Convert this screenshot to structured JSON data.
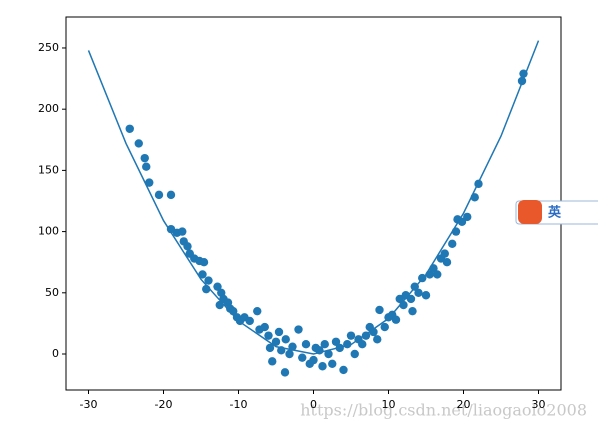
{
  "chart_data": {
    "type": "scatter",
    "xlim": [
      -33,
      33
    ],
    "ylim": [
      -29.4,
      275.3
    ],
    "xticks": [
      -30,
      -20,
      -10,
      0,
      10,
      20,
      30
    ],
    "yticks": [
      0,
      50,
      100,
      150,
      200,
      250
    ],
    "series": [
      {
        "type": "line",
        "color": "#1f77b4",
        "x": [
          -30,
          -25,
          -20,
          -15,
          -10,
          -5,
          0,
          5,
          10,
          15,
          20,
          25,
          30
        ],
        "values": [
          248,
          172,
          109,
          61,
          27,
          6,
          0,
          7.7,
          29,
          65,
          115,
          178,
          256
        ]
      },
      {
        "type": "scatter",
        "color": "#1f77b4",
        "x": [
          -24.5,
          -23.3,
          -22.5,
          -22.3,
          -21.9,
          -20.6,
          -19,
          -19,
          -18.2,
          -17.5,
          -17.3,
          -16.8,
          -16.5,
          -15.9,
          -15.2,
          -14.6,
          -14.8,
          -14,
          -14.3,
          -12.8,
          -12.3,
          -12,
          -12.5,
          -11.4,
          -11.1,
          -10.7,
          -10.2,
          -9.8,
          -9.2,
          -8.5,
          -7.5,
          -7.2,
          -6.5,
          -6,
          -5.8,
          -5.5,
          -5,
          -4.6,
          -4.3,
          -3.8,
          -3.7,
          -3.2,
          -2.8,
          -2,
          -1.5,
          -1,
          -0.5,
          0,
          0.3,
          0.8,
          1.2,
          1.5,
          2,
          2.5,
          3,
          3.5,
          4,
          4.5,
          5,
          5.5,
          6,
          6.5,
          7,
          7.5,
          8,
          8.5,
          8.8,
          9.5,
          10,
          10.5,
          11,
          11.5,
          12,
          12.3,
          13,
          13.5,
          13.2,
          14,
          14.5,
          15,
          15.5,
          16,
          16.5,
          17,
          17.5,
          17.8,
          18.5,
          19,
          19.2,
          19.8,
          20.5,
          21.5,
          22,
          27.8,
          28
        ],
        "values": [
          184,
          172,
          160,
          153,
          140,
          130,
          130,
          102,
          99,
          100,
          92,
          88,
          82,
          78,
          76,
          75,
          65,
          60,
          53,
          55,
          50,
          45,
          40,
          42,
          37,
          35,
          30,
          27,
          30,
          27,
          35,
          20,
          22,
          15,
          5,
          -6,
          10,
          18,
          3,
          -15,
          12,
          0,
          6,
          20,
          -3,
          8,
          -8,
          -5,
          5,
          3,
          -10,
          8,
          0,
          -8,
          10,
          5,
          -13,
          8,
          15,
          0,
          12,
          8,
          15,
          22,
          18,
          12,
          36,
          22,
          30,
          32,
          28,
          45,
          40,
          48,
          45,
          55,
          35,
          50,
          62,
          48,
          65,
          70,
          65,
          78,
          82,
          75,
          90,
          100,
          110,
          108,
          112,
          128,
          139,
          223,
          229
        ]
      }
    ]
  },
  "watermark": "https://blog.csdn.net/liaogaolo2008",
  "ime_label": "英"
}
